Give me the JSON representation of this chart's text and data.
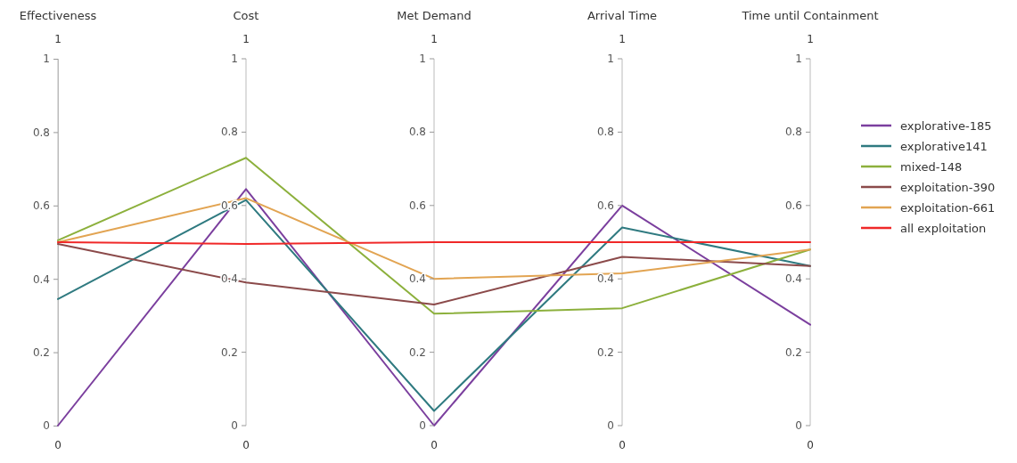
{
  "chart_data": {
    "type": "line",
    "categories": [
      "Effectiveness",
      "Cost",
      "Met Demand",
      "Arrival Time",
      "Time until Containment"
    ],
    "ylim": [
      0,
      1
    ],
    "yticks": [
      0,
      0.2,
      0.4,
      0.6,
      0.8,
      1
    ],
    "grid": "x",
    "legend": "right",
    "series": [
      {
        "name": "explorative-185",
        "color": "#7b3f9e",
        "values": [
          0,
          0.645,
          0,
          0.6,
          0.275
        ]
      },
      {
        "name": "explorative141",
        "color": "#2f7a80",
        "values": [
          0.345,
          0.615,
          0.04,
          0.54,
          0.435
        ]
      },
      {
        "name": "mixed-148",
        "color": "#8cb03c",
        "values": [
          0.505,
          0.73,
          0.305,
          0.32,
          0.48
        ]
      },
      {
        "name": "exploitation-390",
        "color": "#8b4a4a",
        "values": [
          0.495,
          0.39,
          0.33,
          0.46,
          0.435
        ]
      },
      {
        "name": "exploitation-661",
        "color": "#e2a452",
        "values": [
          0.5,
          0.62,
          0.4,
          0.415,
          0.48
        ]
      },
      {
        "name": "all exploitation",
        "color": "#f02828",
        "values": [
          0.5,
          0.495,
          0.5,
          0.5,
          0.5
        ]
      }
    ],
    "annotations": [
      "0",
      "0.2",
      "0.4",
      "0.6",
      "0.8",
      "1",
      "0",
      "0.2",
      "0.4",
      "0.6",
      "0.8",
      "1",
      "0",
      "0.2",
      "0.4",
      "0.6",
      "0.8",
      "1",
      "0",
      "0.2",
      "0.4",
      "0.6",
      "0.8",
      "1",
      "1",
      "0",
      "1",
      "0",
      "1",
      "0",
      "1",
      "0",
      "1",
      "0"
    ]
  }
}
